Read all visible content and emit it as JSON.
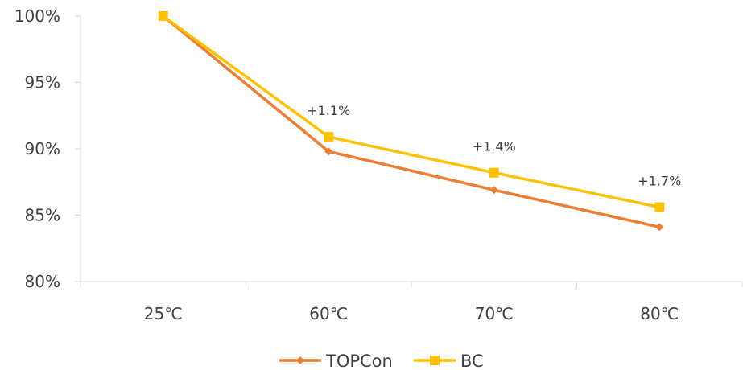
{
  "chart_data": {
    "type": "line",
    "categories": [
      "25℃",
      "60℃",
      "70℃",
      "80℃"
    ],
    "series": [
      {
        "name": "TOPCon",
        "values": [
          100,
          89.8,
          86.9,
          84.1
        ],
        "color": "#ED7D31",
        "marker": "diamond"
      },
      {
        "name": "BC",
        "values": [
          100,
          90.9,
          88.2,
          85.6
        ],
        "color": "#FFC000",
        "marker": "square"
      }
    ],
    "data_labels": [
      "",
      "+1.1%",
      "+1.4%",
      "+1.7%"
    ],
    "y_ticks": [
      "80%",
      "85%",
      "90%",
      "95%",
      "100%"
    ],
    "ylim": [
      80,
      100
    ],
    "legend_position": "bottom",
    "grid": false
  }
}
